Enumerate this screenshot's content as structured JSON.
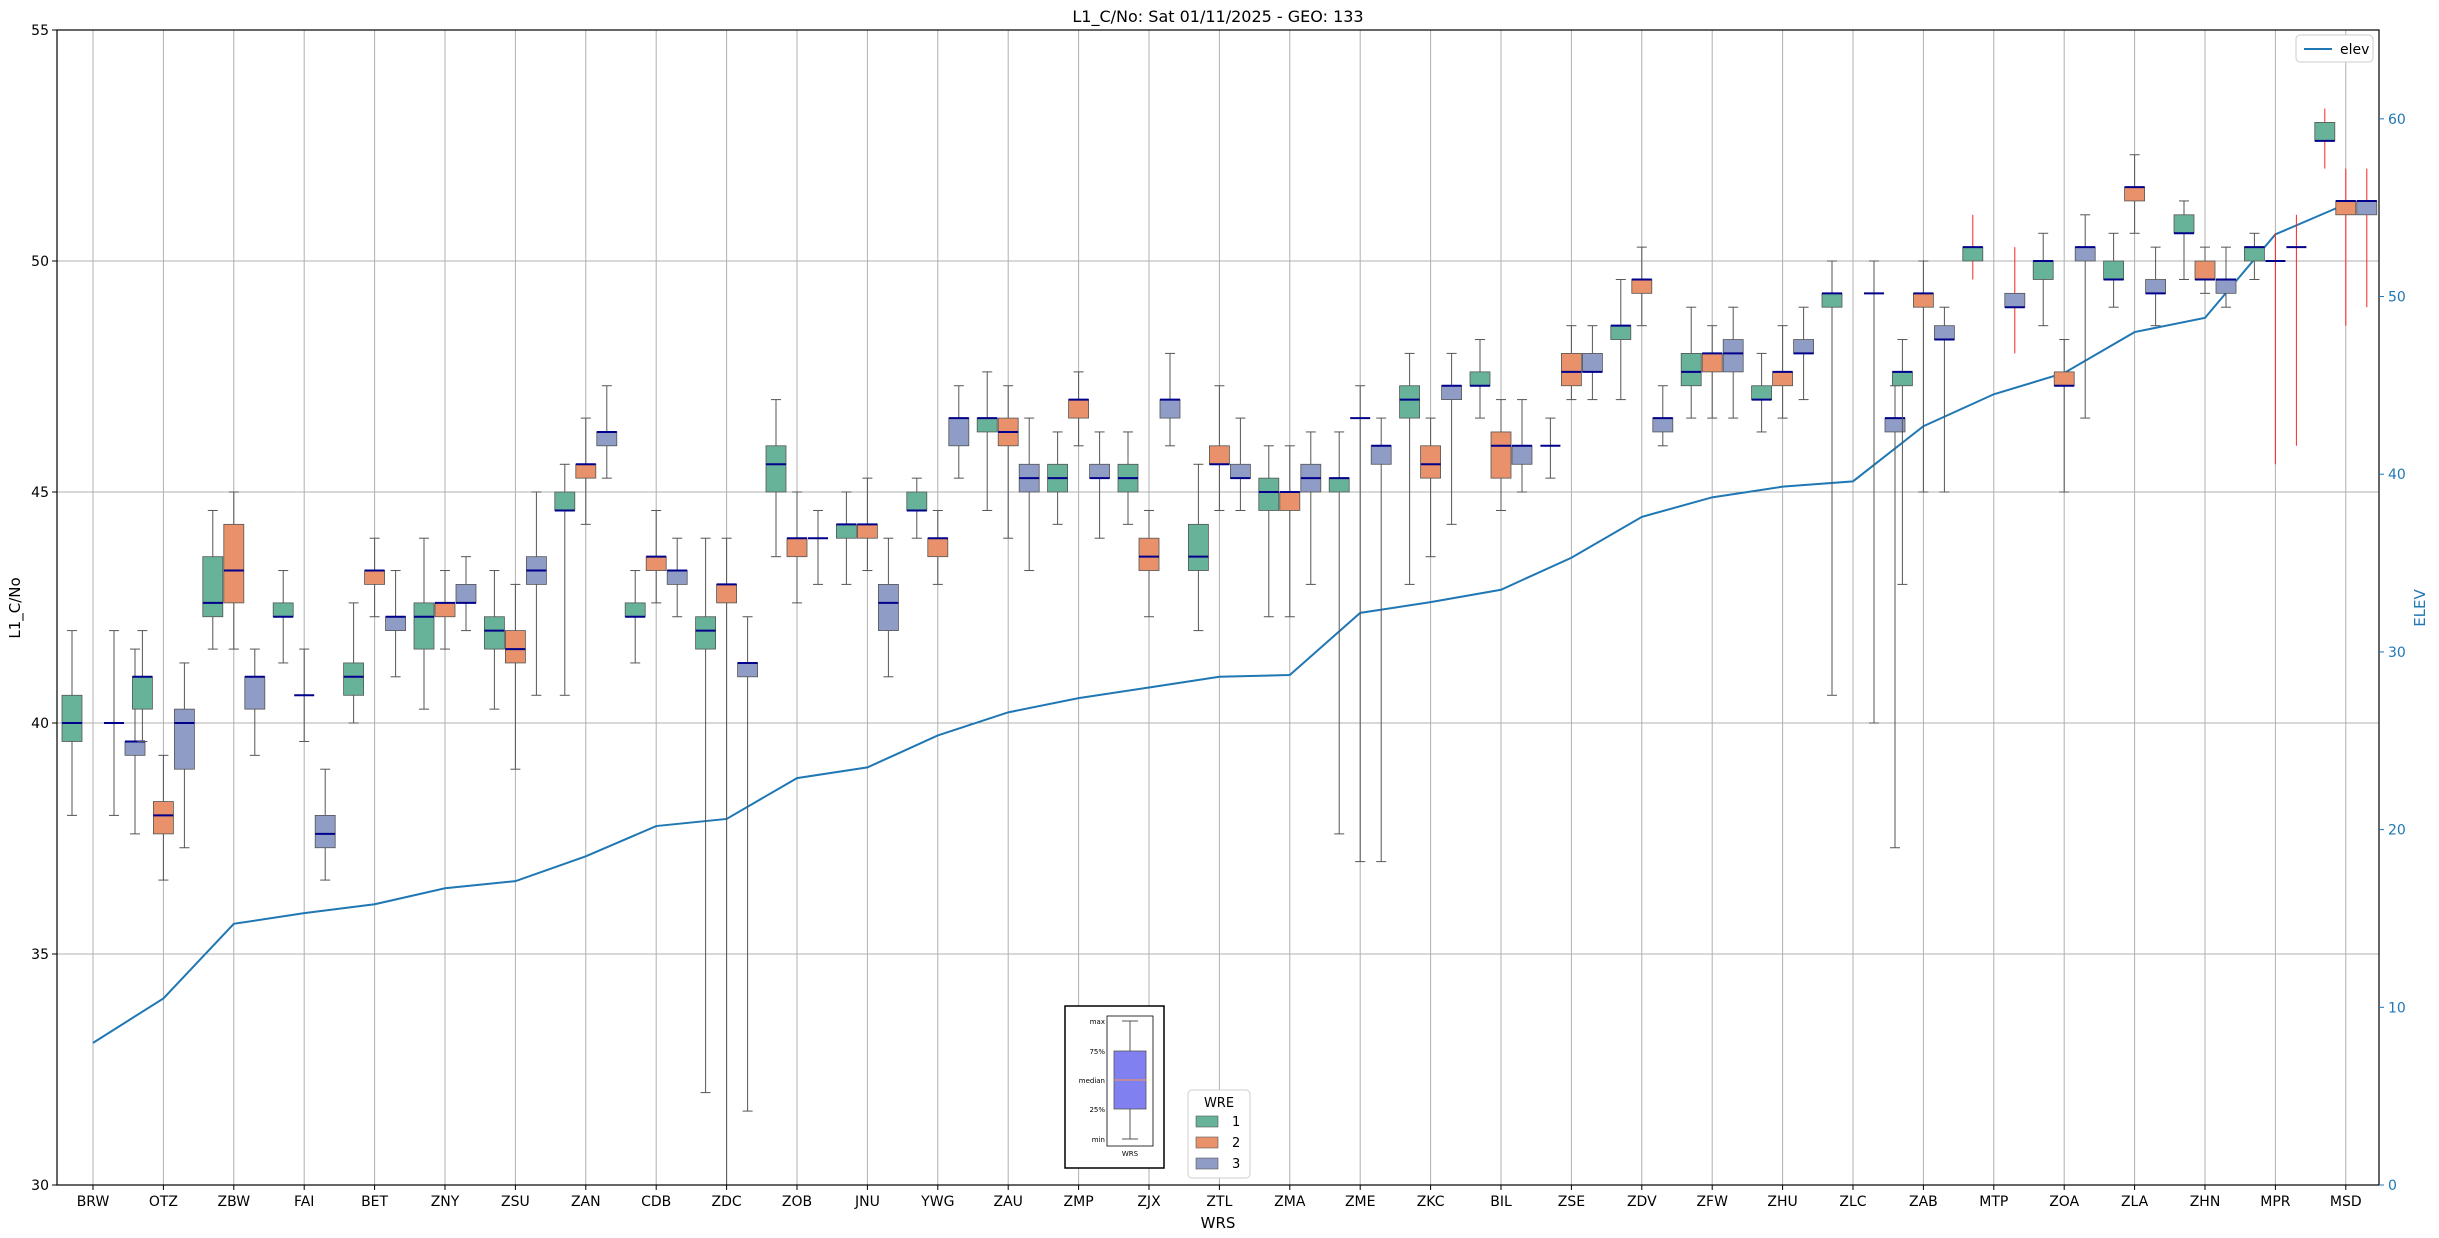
{
  "chart_data": {
    "type": "box",
    "title": "L1_C/No: Sat 01/11/2025 - GEO: 133",
    "xlabel": "WRS",
    "ylabel": "L1_C/No",
    "y2label": "ELEV",
    "ylim": [
      30,
      55
    ],
    "y2lim": [
      0,
      65
    ],
    "yticks": [
      30,
      35,
      40,
      45,
      50,
      55
    ],
    "y2ticks": [
      0,
      10,
      20,
      30,
      40,
      50,
      60
    ],
    "categories": [
      "BRW",
      "OTZ",
      "ZBW",
      "FAI",
      "BET",
      "ZNY",
      "ZSU",
      "ZAN",
      "CDB",
      "ZDC",
      "ZOB",
      "JNU",
      "YWG",
      "ZAU",
      "ZMP",
      "ZJX",
      "ZTL",
      "ZMA",
      "ZME",
      "ZKC",
      "BIL",
      "ZSE",
      "ZDV",
      "ZFW",
      "ZHU",
      "ZLC",
      "ZAB",
      "MTP",
      "ZOA",
      "ZLA",
      "ZHN",
      "MPR",
      "MSD"
    ],
    "colors": {
      "wre1": "#66b399",
      "wre2": "#e8916a",
      "wre3": "#8f9cc6",
      "median": "#00008b",
      "whisker": "#555555",
      "whisker_red": "#ff2222",
      "elev": "#1f77b4",
      "grid": "#b0b0b0",
      "axis2": "#1f77b4"
    },
    "legend_wre": {
      "title": "WRE",
      "items": [
        "1",
        "2",
        "3"
      ]
    },
    "legend_elev": "elev",
    "key_box": {
      "labels": [
        "max",
        "75%",
        "median",
        "25%",
        "min"
      ],
      "footer": "WRS"
    },
    "elev": [
      8,
      10.5,
      14.7,
      15.3,
      15.8,
      16.7,
      17.1,
      18.5,
      20.2,
      20.6,
      22.9,
      23.5,
      25.3,
      26.6,
      27.4,
      28,
      28.6,
      28.7,
      32.2,
      32.8,
      33.5,
      35.3,
      37.6,
      38.7,
      39.3,
      39.6,
      42.7,
      44.5,
      45.7,
      48,
      48.8,
      53.5,
      55.2
    ],
    "boxes": [
      {
        "c": "BRW",
        "w": 1,
        "min": 38,
        "q1": 39.6,
        "med": 40,
        "q3": 40.6,
        "max": 42
      },
      {
        "c": "BRW",
        "w": 3,
        "min": 38,
        "q1": 40,
        "med": 40,
        "q3": 40,
        "max": 42
      },
      {
        "c": "BRW",
        "w": 3,
        "off": 1,
        "min": 37.6,
        "q1": 39.3,
        "med": 39.6,
        "q3": 39.6,
        "max": 41.6
      },
      {
        "c": "OTZ",
        "w": 1,
        "min": 39.6,
        "q1": 40.3,
        "med": 41,
        "q3": 41,
        "max": 42
      },
      {
        "c": "OTZ",
        "w": 2,
        "min": 36.6,
        "q1": 37.6,
        "med": 38,
        "q3": 38.3,
        "max": 39.3
      },
      {
        "c": "OTZ",
        "w": 3,
        "min": 37.3,
        "q1": 39,
        "med": 40,
        "q3": 40.3,
        "max": 41.3
      },
      {
        "c": "ZBW",
        "w": 1,
        "min": 41.6,
        "q1": 42.3,
        "med": 42.6,
        "q3": 43.6,
        "max": 44.6
      },
      {
        "c": "ZBW",
        "w": 2,
        "min": 41.6,
        "q1": 42.6,
        "med": 43.3,
        "q3": 44.3,
        "max": 45
      },
      {
        "c": "ZBW",
        "w": 3,
        "min": 39.3,
        "q1": 40.3,
        "med": 41,
        "q3": 41,
        "max": 41.6
      },
      {
        "c": "FAI",
        "w": 1,
        "min": 41.3,
        "q1": 42.3,
        "med": 42.3,
        "q3": 42.6,
        "max": 43.3
      },
      {
        "c": "FAI",
        "w": 2,
        "min": 39.6,
        "q1": 40.6,
        "med": 40.6,
        "q3": 40.6,
        "max": 41.6
      },
      {
        "c": "FAI",
        "w": 3,
        "min": 36.6,
        "q1": 37.3,
        "med": 37.6,
        "q3": 38,
        "max": 39
      },
      {
        "c": "BET",
        "w": 1,
        "min": 40,
        "q1": 40.6,
        "med": 41,
        "q3": 41.3,
        "max": 42.6
      },
      {
        "c": "BET",
        "w": 2,
        "min": 42.3,
        "q1": 43,
        "med": 43.3,
        "q3": 43.3,
        "max": 44
      },
      {
        "c": "BET",
        "w": 3,
        "min": 41,
        "q1": 42,
        "med": 42.3,
        "q3": 42.3,
        "max": 43.3
      },
      {
        "c": "ZNY",
        "w": 1,
        "min": 40.3,
        "q1": 41.6,
        "med": 42.3,
        "q3": 42.6,
        "max": 44
      },
      {
        "c": "ZNY",
        "w": 2,
        "min": 41.6,
        "q1": 42.3,
        "med": 42.6,
        "q3": 42.6,
        "max": 43.3
      },
      {
        "c": "ZNY",
        "w": 3,
        "min": 42,
        "q1": 42.6,
        "med": 42.6,
        "q3": 43,
        "max": 43.6
      },
      {
        "c": "ZSU",
        "w": 1,
        "min": 40.3,
        "q1": 41.6,
        "med": 42,
        "q3": 42.3,
        "max": 43.3
      },
      {
        "c": "ZSU",
        "w": 2,
        "min": 39,
        "q1": 41.3,
        "med": 41.6,
        "q3": 42,
        "max": 43
      },
      {
        "c": "ZSU",
        "w": 3,
        "min": 40.6,
        "q1": 43,
        "med": 43.3,
        "q3": 43.6,
        "max": 45
      },
      {
        "c": "ZAN",
        "w": 1,
        "min": 40.6,
        "q1": 44.6,
        "med": 44.6,
        "q3": 45,
        "max": 45.6
      },
      {
        "c": "ZAN",
        "w": 2,
        "min": 44.3,
        "q1": 45.3,
        "med": 45.6,
        "q3": 45.6,
        "max": 46.6
      },
      {
        "c": "ZAN",
        "w": 3,
        "min": 45.3,
        "q1": 46,
        "med": 46.3,
        "q3": 46.3,
        "max": 47.3
      },
      {
        "c": "CDB",
        "w": 1,
        "min": 41.3,
        "q1": 42.3,
        "med": 42.3,
        "q3": 42.6,
        "max": 43.3
      },
      {
        "c": "CDB",
        "w": 2,
        "min": 42.6,
        "q1": 43.3,
        "med": 43.6,
        "q3": 43.6,
        "max": 44.6
      },
      {
        "c": "CDB",
        "w": 3,
        "min": 42.3,
        "q1": 43,
        "med": 43.3,
        "q3": 43.3,
        "max": 44
      },
      {
        "c": "ZDC",
        "w": 1,
        "min": 32,
        "q1": 41.6,
        "med": 42,
        "q3": 42.3,
        "max": 44
      },
      {
        "c": "ZDC",
        "w": 2,
        "min": 30,
        "q1": 42.6,
        "med": 43,
        "q3": 43,
        "max": 44
      },
      {
        "c": "ZDC",
        "w": 3,
        "min": 31.6,
        "q1": 41,
        "med": 41.3,
        "q3": 41.3,
        "max": 42.3
      },
      {
        "c": "ZOB",
        "w": 1,
        "min": 43.6,
        "q1": 45,
        "med": 45.6,
        "q3": 46,
        "max": 47
      },
      {
        "c": "ZOB",
        "w": 2,
        "min": 42.6,
        "q1": 43.6,
        "med": 44,
        "q3": 44,
        "max": 45
      },
      {
        "c": "ZOB",
        "w": 3,
        "min": 43,
        "q1": 44,
        "med": 44,
        "q3": 44,
        "max": 44.6
      },
      {
        "c": "JNU",
        "w": 1,
        "min": 43,
        "q1": 44,
        "med": 44.3,
        "q3": 44.3,
        "max": 45
      },
      {
        "c": "JNU",
        "w": 2,
        "min": 43.3,
        "q1": 44,
        "med": 44.3,
        "q3": 44.3,
        "max": 45.3
      },
      {
        "c": "JNU",
        "w": 3,
        "min": 41,
        "q1": 42,
        "med": 42.6,
        "q3": 43,
        "max": 44
      },
      {
        "c": "YWG",
        "w": 1,
        "min": 44,
        "q1": 44.6,
        "med": 44.6,
        "q3": 45,
        "max": 45.3
      },
      {
        "c": "YWG",
        "w": 2,
        "min": 43,
        "q1": 43.6,
        "med": 44,
        "q3": 44,
        "max": 44.6
      },
      {
        "c": "YWG",
        "w": 3,
        "min": 45.3,
        "q1": 46,
        "med": 46.6,
        "q3": 46.6,
        "max": 47.3
      },
      {
        "c": "ZAU",
        "w": 1,
        "min": 44.6,
        "q1": 46.3,
        "med": 46.6,
        "q3": 46.6,
        "max": 47.6
      },
      {
        "c": "ZAU",
        "w": 2,
        "min": 44,
        "q1": 46,
        "med": 46.3,
        "q3": 46.6,
        "max": 47.3
      },
      {
        "c": "ZAU",
        "w": 3,
        "min": 43.3,
        "q1": 45,
        "med": 45.3,
        "q3": 45.6,
        "max": 46.6
      },
      {
        "c": "ZMP",
        "w": 1,
        "min": 44.3,
        "q1": 45,
        "med": 45.3,
        "q3": 45.6,
        "max": 46.3
      },
      {
        "c": "ZMP",
        "w": 2,
        "min": 46,
        "q1": 46.6,
        "med": 47,
        "q3": 47,
        "max": 47.6
      },
      {
        "c": "ZMP",
        "w": 3,
        "min": 44,
        "q1": 45.3,
        "med": 45.3,
        "q3": 45.6,
        "max": 46.3
      },
      {
        "c": "ZJX",
        "w": 1,
        "min": 44.3,
        "q1": 45,
        "med": 45.3,
        "q3": 45.6,
        "max": 46.3
      },
      {
        "c": "ZJX",
        "w": 2,
        "min": 42.3,
        "q1": 43.3,
        "med": 43.6,
        "q3": 44,
        "max": 44.6
      },
      {
        "c": "ZJX",
        "w": 3,
        "min": 46,
        "q1": 46.6,
        "med": 47,
        "q3": 47,
        "max": 48
      },
      {
        "c": "ZTL",
        "w": 1,
        "min": 42,
        "q1": 43.3,
        "med": 43.6,
        "q3": 44.3,
        "max": 45.6
      },
      {
        "c": "ZTL",
        "w": 2,
        "min": 44.6,
        "q1": 45.6,
        "med": 45.6,
        "q3": 46,
        "max": 47.3
      },
      {
        "c": "ZTL",
        "w": 3,
        "min": 44.6,
        "q1": 45.3,
        "med": 45.3,
        "q3": 45.6,
        "max": 46.6
      },
      {
        "c": "ZMA",
        "w": 1,
        "min": 42.3,
        "q1": 44.6,
        "med": 45,
        "q3": 45.3,
        "max": 46
      },
      {
        "c": "ZMA",
        "w": 2,
        "min": 42.3,
        "q1": 44.6,
        "med": 45,
        "q3": 45,
        "max": 46
      },
      {
        "c": "ZMA",
        "w": 3,
        "min": 43,
        "q1": 45,
        "med": 45.3,
        "q3": 45.6,
        "max": 46.3
      },
      {
        "c": "ZME",
        "w": 1,
        "min": 37.6,
        "q1": 45,
        "med": 45.3,
        "q3": 45.3,
        "max": 46.3
      },
      {
        "c": "ZME",
        "w": 2,
        "min": 37,
        "q1": 46.6,
        "med": 46.6,
        "q3": 46.6,
        "max": 47.3
      },
      {
        "c": "ZME",
        "w": 3,
        "min": 37,
        "q1": 45.6,
        "med": 46,
        "q3": 46,
        "max": 46.6
      },
      {
        "c": "ZKC",
        "w": 1,
        "min": 43,
        "q1": 46.6,
        "med": 47,
        "q3": 47.3,
        "max": 48
      },
      {
        "c": "ZKC",
        "w": 2,
        "min": 43.6,
        "q1": 45.3,
        "med": 45.6,
        "q3": 46,
        "max": 46.6
      },
      {
        "c": "ZKC",
        "w": 3,
        "min": 44.3,
        "q1": 47,
        "med": 47.3,
        "q3": 47.3,
        "max": 48
      },
      {
        "c": "BIL",
        "w": 1,
        "min": 46.6,
        "q1": 47.3,
        "med": 47.3,
        "q3": 47.6,
        "max": 48.3
      },
      {
        "c": "BIL",
        "w": 2,
        "min": 44.6,
        "q1": 45.3,
        "med": 46,
        "q3": 46.3,
        "max": 47
      },
      {
        "c": "BIL",
        "w": 3,
        "min": 45,
        "q1": 45.6,
        "med": 46,
        "q3": 46,
        "max": 47
      },
      {
        "c": "ZSE",
        "w": 1,
        "min": 45.3,
        "q1": 46,
        "med": 46,
        "q3": 46,
        "max": 46.6
      },
      {
        "c": "ZSE",
        "w": 2,
        "min": 47,
        "q1": 47.3,
        "med": 47.6,
        "q3": 48,
        "max": 48.6
      },
      {
        "c": "ZSE",
        "w": 3,
        "min": 47,
        "q1": 47.6,
        "med": 47.6,
        "q3": 48,
        "max": 48.6
      },
      {
        "c": "ZDV",
        "w": 1,
        "min": 47,
        "q1": 48.3,
        "med": 48.6,
        "q3": 48.6,
        "max": 49.6
      },
      {
        "c": "ZDV",
        "w": 2,
        "min": 48.6,
        "q1": 49.3,
        "med": 49.6,
        "q3": 49.6,
        "max": 50.3
      },
      {
        "c": "ZDV",
        "w": 3,
        "min": 46,
        "q1": 46.3,
        "med": 46.6,
        "q3": 46.6,
        "max": 47.3
      },
      {
        "c": "ZFW",
        "w": 1,
        "min": 46.6,
        "q1": 47.3,
        "med": 47.6,
        "q3": 48,
        "max": 49
      },
      {
        "c": "ZFW",
        "w": 2,
        "min": 46.6,
        "q1": 47.6,
        "med": 48,
        "q3": 48,
        "max": 48.6
      },
      {
        "c": "ZFW",
        "w": 3,
        "min": 46.6,
        "q1": 47.6,
        "med": 48,
        "q3": 48.3,
        "max": 49
      },
      {
        "c": "ZHU",
        "w": 1,
        "min": 46.3,
        "q1": 47,
        "med": 47,
        "q3": 47.3,
        "max": 48
      },
      {
        "c": "ZHU",
        "w": 2,
        "min": 46.6,
        "q1": 47.3,
        "med": 47.6,
        "q3": 47.6,
        "max": 48.6
      },
      {
        "c": "ZHU",
        "w": 3,
        "min": 47,
        "q1": 48,
        "med": 48,
        "q3": 48.3,
        "max": 49
      },
      {
        "c": "ZLC",
        "w": 1,
        "min": 40.6,
        "q1": 49,
        "med": 49.3,
        "q3": 49.3,
        "max": 50
      },
      {
        "c": "ZLC",
        "w": 3,
        "min": 40,
        "q1": 49.3,
        "med": 49.3,
        "q3": 49.3,
        "max": 50
      },
      {
        "c": "ZLC",
        "w": 3,
        "off": 1,
        "min": 37.3,
        "q1": 46.3,
        "med": 46.6,
        "q3": 46.6,
        "max": 47.3
      },
      {
        "c": "ZAB",
        "w": 1,
        "min": 43,
        "q1": 47.3,
        "med": 47.6,
        "q3": 47.6,
        "max": 48.3
      },
      {
        "c": "ZAB",
        "w": 2,
        "min": 45,
        "q1": 49,
        "med": 49.3,
        "q3": 49.3,
        "max": 50
      },
      {
        "c": "ZAB",
        "w": 3,
        "min": 45,
        "q1": 48.3,
        "med": 48.3,
        "q3": 48.6,
        "max": 49
      },
      {
        "c": "MTP",
        "w": 1,
        "red": true,
        "min": 49.6,
        "q1": 50,
        "med": 50.3,
        "q3": 50.3,
        "max": 51
      },
      {
        "c": "MTP",
        "w": 3,
        "red": true,
        "min": 48,
        "q1": 49,
        "med": 49,
        "q3": 49.3,
        "max": 50.3
      },
      {
        "c": "ZOA",
        "w": 1,
        "min": 48.6,
        "q1": 49.6,
        "med": 50,
        "q3": 50,
        "max": 50.6
      },
      {
        "c": "ZOA",
        "w": 2,
        "min": 45,
        "q1": 47.3,
        "med": 47.3,
        "q3": 47.6,
        "max": 48.3
      },
      {
        "c": "ZOA",
        "w": 3,
        "min": 46.6,
        "q1": 50,
        "med": 50.3,
        "q3": 50.3,
        "max": 51
      },
      {
        "c": "ZLA",
        "w": 1,
        "min": 49,
        "q1": 49.6,
        "med": 49.6,
        "q3": 50,
        "max": 50.6
      },
      {
        "c": "ZLA",
        "w": 2,
        "min": 50.6,
        "q1": 51.3,
        "med": 51.6,
        "q3": 51.6,
        "max": 52.3
      },
      {
        "c": "ZLA",
        "w": 3,
        "min": 48.6,
        "q1": 49.3,
        "med": 49.3,
        "q3": 49.6,
        "max": 50.3
      },
      {
        "c": "ZHN",
        "w": 1,
        "min": 49.6,
        "q1": 50.6,
        "med": 50.6,
        "q3": 51,
        "max": 51.3
      },
      {
        "c": "ZHN",
        "w": 2,
        "min": 49.3,
        "q1": 49.6,
        "med": 49.6,
        "q3": 50,
        "max": 50.3
      },
      {
        "c": "ZHN",
        "w": 3,
        "min": 49,
        "q1": 49.3,
        "med": 49.6,
        "q3": 49.6,
        "max": 50.3
      },
      {
        "c": "MPR",
        "w": 1,
        "min": 49.6,
        "q1": 50,
        "med": 50.3,
        "q3": 50.3,
        "max": 50.6
      },
      {
        "c": "MPR",
        "w": 2,
        "red": true,
        "min": 45.6,
        "q1": 50,
        "med": 50,
        "q3": 50,
        "max": 50.6
      },
      {
        "c": "MPR",
        "w": 3,
        "red": true,
        "min": 46,
        "q1": 50.3,
        "med": 50.3,
        "q3": 50.3,
        "max": 51
      },
      {
        "c": "MSD",
        "w": 1,
        "red": true,
        "min": 52,
        "q1": 52.6,
        "med": 52.6,
        "q3": 53,
        "max": 53.3
      },
      {
        "c": "MSD",
        "w": 2,
        "red": true,
        "min": 48.6,
        "q1": 51,
        "med": 51.3,
        "q3": 51.3,
        "max": 52
      },
      {
        "c": "MSD",
        "w": 3,
        "red": true,
        "min": 49,
        "q1": 51,
        "med": 51.3,
        "q3": 51.3,
        "max": 52
      }
    ]
  }
}
